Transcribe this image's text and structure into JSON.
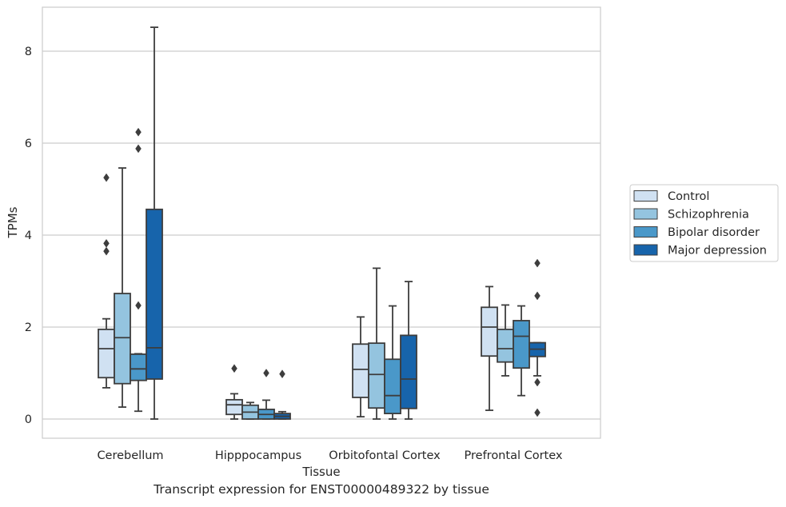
{
  "caption": "Transcript expression for ENST00000489322 by tissue",
  "chart_data": {
    "type": "box",
    "title": "",
    "xlabel": "Tissue",
    "ylabel": "TPMs",
    "ylim": [
      -0.4,
      8.95
    ],
    "yticks": [
      0,
      2,
      4,
      6,
      8
    ],
    "grid": "horizontal",
    "legend_position": "right",
    "categories": [
      "Cerebellum",
      "Hipppocampus",
      "Orbitofontal Cortex",
      "Prefrontal Cortex"
    ],
    "series": [
      {
        "name": "Control",
        "color": "#d0e1f2",
        "boxes": [
          {
            "whislo": 0.68,
            "q1": 0.9,
            "med": 1.53,
            "q3": 1.95,
            "whishi": 2.18,
            "fliers": [
              3.65,
              3.82,
              5.25
            ]
          },
          {
            "whislo": 0.0,
            "q1": 0.1,
            "med": 0.31,
            "q3": 0.42,
            "whishi": 0.55,
            "fliers": [
              1.1
            ]
          },
          {
            "whislo": 0.05,
            "q1": 0.47,
            "med": 1.08,
            "q3": 1.63,
            "whishi": 2.22,
            "fliers": []
          },
          {
            "whislo": 0.19,
            "q1": 1.37,
            "med": 2.0,
            "q3": 2.43,
            "whishi": 2.88,
            "fliers": []
          }
        ]
      },
      {
        "name": "Schizophrenia",
        "color": "#94c4df",
        "boxes": [
          {
            "whislo": 0.26,
            "q1": 0.77,
            "med": 1.77,
            "q3": 2.73,
            "whishi": 5.46,
            "fliers": []
          },
          {
            "whislo": 0.0,
            "q1": 0.0,
            "med": 0.15,
            "q3": 0.3,
            "whishi": 0.36,
            "fliers": []
          },
          {
            "whislo": 0.0,
            "q1": 0.24,
            "med": 0.97,
            "q3": 1.65,
            "whishi": 3.28,
            "fliers": []
          },
          {
            "whislo": 0.94,
            "q1": 1.24,
            "med": 1.53,
            "q3": 1.95,
            "whishi": 2.48,
            "fliers": []
          }
        ]
      },
      {
        "name": "Bipolar disorder",
        "color": "#4a98c9",
        "boxes": [
          {
            "whislo": 0.17,
            "q1": 0.84,
            "med": 1.09,
            "q3": 1.41,
            "whishi": 1.42,
            "fliers": [
              2.47,
              5.88,
              6.24
            ]
          },
          {
            "whislo": 0.0,
            "q1": 0.0,
            "med": 0.1,
            "q3": 0.21,
            "whishi": 0.41,
            "fliers": [
              1.0
            ]
          },
          {
            "whislo": 0.0,
            "q1": 0.12,
            "med": 0.51,
            "q3": 1.3,
            "whishi": 2.46,
            "fliers": []
          },
          {
            "whislo": 0.51,
            "q1": 1.11,
            "med": 1.8,
            "q3": 2.14,
            "whishi": 2.46,
            "fliers": []
          }
        ]
      },
      {
        "name": "Major depression",
        "color": "#1764ab",
        "boxes": [
          {
            "whislo": 0.0,
            "q1": 0.87,
            "med": 1.55,
            "q3": 4.56,
            "whishi": 8.52,
            "fliers": []
          },
          {
            "whislo": 0.0,
            "q1": 0.0,
            "med": 0.06,
            "q3": 0.12,
            "whishi": 0.16,
            "fliers": [
              0.98
            ]
          },
          {
            "whislo": 0.0,
            "q1": 0.23,
            "med": 0.87,
            "q3": 1.82,
            "whishi": 2.99,
            "fliers": []
          },
          {
            "whislo": 0.94,
            "q1": 1.36,
            "med": 1.52,
            "q3": 1.66,
            "whishi": 1.66,
            "fliers": [
              0.14,
              0.8,
              2.68,
              3.39
            ]
          }
        ]
      }
    ]
  }
}
